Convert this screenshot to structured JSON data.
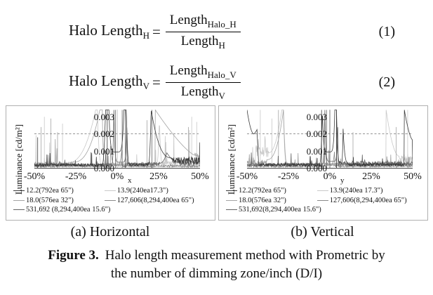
{
  "equations": [
    {
      "lhs": "Halo Length",
      "lhs_sub": "H",
      "equals": "=",
      "num": "Length",
      "num_sub": "Halo_H",
      "den": "Length",
      "den_sub": "H",
      "number": "(1)"
    },
    {
      "lhs": "Halo Length",
      "lhs_sub": "V",
      "equals": "=",
      "num": "Length",
      "num_sub": "Halo_V",
      "den": "Length",
      "den_sub": "V",
      "number": "(2)"
    }
  ],
  "chart_data": [
    {
      "type": "line",
      "title": "(a) Horizontal",
      "ylabel": "Luminance [cd/m²]",
      "xlabel": "x",
      "x_ticks": [
        "-50%",
        "-25%",
        "0%",
        "25%",
        "50%"
      ],
      "x_tick_values": [
        -50,
        -25,
        0,
        25,
        50
      ],
      "y_ticks": [
        "0.003",
        "0.002",
        "0.001",
        "0.000"
      ],
      "xlim": [
        -50,
        50
      ],
      "ylim": [
        0,
        0.0034
      ],
      "threshold": 0.002,
      "grid": "dashed threshold line at 0.002 only",
      "legend_position": "bottom",
      "series": [
        {
          "label": "12.2(792ea 65\")",
          "color": "#3b3b3b",
          "segments": [
            {
              "t": "flat",
              "x0": -50,
              "x1": -9,
              "base": 0.00018,
              "amp": 8e-05,
              "sp": 0.02,
              "sh": 0.0011
            },
            {
              "t": "rise",
              "x0": -9,
              "x1": -7,
              "y0": 0.0002,
              "y1": 0.0034,
              "k": 2
            },
            {
              "t": "top",
              "x0": -7,
              "x1": -5,
              "y": 0.0034
            },
            {
              "t": "u",
              "x0": -5,
              "x1": 4,
              "ymin": 0.00095,
              "ytop": 0.0034,
              "k": 6
            },
            {
              "t": "top",
              "x0": 4,
              "x1": 5.5,
              "y": 0.0034
            },
            {
              "t": "fall",
              "x0": 5.5,
              "x1": 7,
              "y0": 0.0034,
              "y1": 0.0003,
              "k": 2
            },
            {
              "t": "flat",
              "x0": 7,
              "x1": 19,
              "base": 0.0002,
              "amp": 8e-05,
              "sp": 0.01,
              "sh": 0.0008
            },
            {
              "t": "rise",
              "x0": 19,
              "x1": 20.5,
              "y0": 0.0003,
              "y1": 0.0034,
              "k": 2
            },
            {
              "t": "fall",
              "x0": 20.5,
              "x1": 33,
              "y0": 0.0034,
              "y1": 0.0006,
              "k": 2.6
            },
            {
              "t": "flat",
              "x0": 33,
              "x1": 50,
              "base": 0.00045,
              "amp": 0.0002,
              "sp": 0.03,
              "sh": 0.0012
            }
          ],
          "vlines": [
            {
              "x": -6,
              "h": 0.0034
            },
            {
              "x": 5,
              "h": 0.0034
            },
            {
              "x": -48,
              "h": 0.0018
            }
          ]
        },
        {
          "label": "13.9(240ea17.3\")",
          "color": "#c8c8c8",
          "segments": [
            {
              "t": "flat",
              "x0": -50,
              "x1": -31,
              "base": 0.00022,
              "amp": 0.00012,
              "sp": 0.04,
              "sh": 0.0018
            },
            {
              "t": "rise",
              "x0": -31,
              "x1": -13,
              "y0": 0.0003,
              "y1": 0.0034,
              "k": 2.6
            },
            {
              "t": "top",
              "x0": -13,
              "x1": -12,
              "y": 0.0034
            },
            {
              "t": "fall",
              "x0": -12,
              "x1": -10,
              "y0": 0.0034,
              "y1": 0.0004,
              "k": 2
            },
            {
              "t": "flat",
              "x0": -10,
              "x1": 24,
              "base": 0.0002,
              "amp": 0.0001,
              "sp": 0.02,
              "sh": 0.001
            },
            {
              "t": "rise",
              "x0": 24,
              "x1": 25.5,
              "y0": 0.0003,
              "y1": 0.0028,
              "k": 2
            },
            {
              "t": "fall",
              "x0": 25.5,
              "x1": 27,
              "y0": 0.0028,
              "y1": 0.0003,
              "k": 2
            },
            {
              "t": "flat",
              "x0": 27,
              "x1": 50,
              "base": 0.00025,
              "amp": 0.00015,
              "sp": 0.05,
              "sh": 0.0022
            }
          ],
          "vlines": [
            {
              "x": -44,
              "h": 0.003
            },
            {
              "x": -33,
              "h": 0.0026
            },
            {
              "x": 45,
              "h": 0.003
            },
            {
              "x": 48,
              "h": 0.0027
            }
          ]
        },
        {
          "label": "18.0(576ea 32\")",
          "color": "#a3a3a3",
          "segments": [
            {
              "t": "flat",
              "x0": -50,
              "x1": -27,
              "base": 0.00025,
              "amp": 0.00013,
              "sp": 0.05,
              "sh": 0.0016
            },
            {
              "t": "rise",
              "x0": -27,
              "x1": -10.5,
              "y0": 0.00035,
              "y1": 0.0034,
              "k": 2.6
            },
            {
              "t": "top",
              "x0": -10.5,
              "x1": -9,
              "y": 0.0034
            },
            {
              "t": "fall",
              "x0": -9,
              "x1": -8,
              "y0": 0.0034,
              "y1": 0.0004,
              "k": 2
            },
            {
              "t": "flat",
              "x0": -8,
              "x1": 23,
              "base": 0.0002,
              "amp": 0.0001,
              "sp": 0.015,
              "sh": 0.0009
            },
            {
              "t": "fall",
              "x0": 23,
              "x1": 47,
              "y0": 0.0034,
              "y1": 0.00075,
              "k": 1.3
            },
            {
              "t": "flat",
              "x0": 47,
              "x1": 50,
              "base": 0.0007,
              "amp": 0.0002,
              "sp": 0.05,
              "sh": 0.0015
            }
          ],
          "vlines": [
            {
              "x": -46,
              "h": 0.0024
            },
            {
              "x": -40,
              "h": 0.0029
            },
            {
              "x": -36,
              "h": 0.0021
            },
            {
              "x": 18,
              "h": 0.0028
            },
            {
              "x": 43,
              "h": 0.0024
            }
          ]
        },
        {
          "label": "127,606(8,294,400ea 65\")",
          "color": "#8a8a8a",
          "segments": [
            {
              "t": "flat",
              "x0": -50,
              "x1": -4,
              "base": 0.00012,
              "amp": 6e-05,
              "sp": 0.008,
              "sh": 0.0006
            },
            {
              "t": "u",
              "x0": -4,
              "x1": 3,
              "ymin": 0.00018,
              "ytop": 0.0013,
              "k": 4
            },
            {
              "t": "flat",
              "x0": 3,
              "x1": 50,
              "base": 0.00012,
              "amp": 6e-05,
              "sp": 0.008,
              "sh": 0.0006
            }
          ],
          "vlines": []
        },
        {
          "label": "531,692 (8,294,400ea 15.6\")",
          "color": "#636363",
          "segments": [
            {
              "t": "flat",
              "x0": -50,
              "x1": -3,
              "base": 0.0002,
              "amp": 0.0001,
              "sp": 0.02,
              "sh": 0.001
            },
            {
              "t": "rise",
              "x0": -3,
              "x1": -2,
              "y0": 0.0003,
              "y1": 0.0034,
              "k": 2
            },
            {
              "t": "u",
              "x0": -2,
              "x1": 6,
              "ymin": 0.00035,
              "ytop": 0.0034,
              "k": 8
            },
            {
              "t": "flat",
              "x0": 6,
              "x1": 26,
              "base": 0.00025,
              "amp": 0.0001,
              "sp": 0.015,
              "sh": 0.0008
            },
            {
              "t": "rise",
              "x0": 26,
              "x1": 30,
              "y0": 0.0003,
              "y1": 0.0009,
              "k": 2
            },
            {
              "t": "fall",
              "x0": 30,
              "x1": 37,
              "y0": 0.0009,
              "y1": 0.00035,
              "k": 2
            },
            {
              "t": "flat",
              "x0": 37,
              "x1": 50,
              "base": 0.0003,
              "amp": 0.00015,
              "sp": 0.03,
              "sh": 0.0013
            }
          ],
          "vlines": [
            {
              "x": -1,
              "h": 0.0034
            },
            {
              "x": 3,
              "h": 0.0034
            },
            {
              "x": 21,
              "h": 0.0034
            }
          ]
        }
      ]
    },
    {
      "type": "line",
      "title": "(b) Vertical",
      "ylabel": "Luminance [cd/m²]",
      "xlabel": "y",
      "x_ticks": [
        "-50%",
        "-25%",
        "0%",
        "25%",
        "50%"
      ],
      "x_tick_values": [
        -50,
        -25,
        0,
        25,
        50
      ],
      "y_ticks": [
        "0.003",
        "0.002",
        "0.001",
        "0.000"
      ],
      "xlim": [
        -50,
        50
      ],
      "ylim": [
        0,
        0.0034
      ],
      "threshold": 0.002,
      "grid": "dashed threshold line at 0.002 only",
      "legend_position": "bottom",
      "series": [
        {
          "label": "12.2(792ea 65\")",
          "color": "#3b3b3b",
          "segments": [
            {
              "t": "fall",
              "x0": -50,
              "x1": -46,
              "y0": 0.0034,
              "y1": 0.002,
              "k": 1.8
            },
            {
              "t": "rise",
              "x0": -46,
              "x1": -44,
              "y0": 0.002,
              "y1": 0.00225,
              "k": 1.5
            },
            {
              "t": "fall",
              "x0": -44,
              "x1": -43,
              "y0": 0.00225,
              "y1": 0.0003,
              "k": 1
            },
            {
              "t": "flat",
              "x0": -43,
              "x1": -6,
              "base": 0.0002,
              "amp": 8e-05,
              "sp": 0.01,
              "sh": 0.0007
            },
            {
              "t": "rise",
              "x0": -6,
              "x1": -4.5,
              "y0": 0.0003,
              "y1": 0.0034,
              "k": 2
            },
            {
              "t": "u",
              "x0": -4.5,
              "x1": 3,
              "ymin": 0.00095,
              "ytop": 0.0034,
              "k": 6
            },
            {
              "t": "top",
              "x0": 3,
              "x1": 4,
              "y": 0.0034
            },
            {
              "t": "fall",
              "x0": 4,
              "x1": 5.5,
              "y0": 0.0034,
              "y1": 0.0004,
              "k": 2
            },
            {
              "t": "flat",
              "x0": 5.5,
              "x1": 7,
              "base": 0.0003,
              "amp": 0.0001,
              "sp": 0,
              "sh": 0
            },
            {
              "t": "rise",
              "x0": 7,
              "x1": 8,
              "y0": 0.0003,
              "y1": 0.0023,
              "k": 3
            },
            {
              "t": "fall",
              "x0": 8,
              "x1": 11,
              "y0": 0.0023,
              "y1": 0.0003,
              "k": 3
            },
            {
              "t": "flat",
              "x0": 11,
              "x1": 45,
              "base": 0.0002,
              "amp": 8e-05,
              "sp": 0.01,
              "sh": 0.0006
            },
            {
              "t": "fall",
              "x0": 45,
              "x1": 50,
              "y0": 0.0034,
              "y1": 0.00165,
              "k": 1.6
            }
          ],
          "vlines": [
            {
              "x": -5,
              "h": 0.0034
            },
            {
              "x": 4,
              "h": 0.0034
            }
          ]
        },
        {
          "label": "13.9(240ea 17.3\")",
          "color": "#c8c8c8",
          "segments": [
            {
              "t": "flat",
              "x0": -50,
              "x1": -45,
              "base": 0.0004,
              "amp": 0.0002,
              "sp": 0.05,
              "sh": 0.001
            },
            {
              "t": "flat",
              "x0": -45,
              "x1": -37,
              "base": 0.001,
              "amp": 0.00035,
              "sp": 0.12,
              "sh": 0.0012
            },
            {
              "t": "rise",
              "x0": -37,
              "x1": -29,
              "y0": 0.0009,
              "y1": 0.0034,
              "k": 2.2
            },
            {
              "t": "top",
              "x0": -29,
              "x1": -28,
              "y": 0.0034
            },
            {
              "t": "fall",
              "x0": -28,
              "x1": -26,
              "y0": 0.0034,
              "y1": 0.0003,
              "k": 2
            },
            {
              "t": "flat",
              "x0": -26,
              "x1": 34,
              "base": 0.0002,
              "amp": 0.0001,
              "sp": 0.015,
              "sh": 0.0008
            },
            {
              "t": "fall",
              "x0": 34,
              "x1": 42,
              "y0": 0.0034,
              "y1": 0.0007,
              "k": 2
            },
            {
              "t": "flat",
              "x0": 42,
              "x1": 50,
              "base": 0.0005,
              "amp": 0.00025,
              "sp": 0.06,
              "sh": 0.0018
            }
          ],
          "vlines": [
            {
              "x": -42,
              "h": 0.0034
            },
            {
              "x": -35,
              "h": 0.0029
            },
            {
              "x": 47,
              "h": 0.0034
            }
          ]
        },
        {
          "label": "18.0(576ea 32\")",
          "color": "#a3a3a3",
          "segments": [
            {
              "t": "flat",
              "x0": -50,
              "x1": -38,
              "base": 0.0003,
              "amp": 0.00015,
              "sp": 0.04,
              "sh": 0.0012
            },
            {
              "t": "rise",
              "x0": -38,
              "x1": -28,
              "y0": 0.0005,
              "y1": 0.0034,
              "k": 2.5
            },
            {
              "t": "fall",
              "x0": -28,
              "x1": -26.5,
              "y0": 0.0034,
              "y1": 0.0004,
              "k": 2
            },
            {
              "t": "flat",
              "x0": -26.5,
              "x1": 50,
              "base": 0.00022,
              "amp": 0.0001,
              "sp": 0.02,
              "sh": 0.0009
            }
          ],
          "vlines": [
            {
              "x": -31,
              "h": 0.0034
            },
            {
              "x": 14,
              "h": 0.0021
            },
            {
              "x": 40,
              "h": 0.0024
            }
          ]
        },
        {
          "label": "127,606(8,294,400ea 65\")",
          "color": "#8a8a8a",
          "segments": [
            {
              "t": "flat",
              "x0": -50,
              "x1": -3,
              "base": 0.00012,
              "amp": 6e-05,
              "sp": 0.008,
              "sh": 0.0006
            },
            {
              "t": "u",
              "x0": -3,
              "x1": 3,
              "ymin": 0.0002,
              "ytop": 0.0012,
              "k": 4
            },
            {
              "t": "flat",
              "x0": 3,
              "x1": 50,
              "base": 0.00012,
              "amp": 6e-05,
              "sp": 0.008,
              "sh": 0.0006
            }
          ],
          "vlines": []
        },
        {
          "label": "531,692(8,294,400ea 15.6\")",
          "color": "#636363",
          "segments": [
            {
              "t": "flat",
              "x0": -50,
              "x1": -4,
              "base": 0.0002,
              "amp": 0.0001,
              "sp": 0.02,
              "sh": 0.0009
            },
            {
              "t": "rise",
              "x0": -4,
              "x1": -3,
              "y0": 0.0003,
              "y1": 0.0034,
              "k": 2
            },
            {
              "t": "u",
              "x0": -3,
              "x1": 5,
              "ymin": 0.0004,
              "ytop": 0.0034,
              "k": 8
            },
            {
              "t": "flat",
              "x0": 5,
              "x1": 50,
              "base": 0.00028,
              "amp": 0.00014,
              "sp": 0.025,
              "sh": 0.0011
            }
          ],
          "vlines": [
            {
              "x": -2,
              "h": 0.0034
            },
            {
              "x": 0,
              "h": 0.0034
            },
            {
              "x": 4,
              "h": 0.0034
            }
          ]
        }
      ]
    }
  ],
  "figure_caption": {
    "label": "Figure 3.",
    "line1": "Halo length measurement method with Prometric by",
    "line2": "the number of dimming zone/inch (D/I)"
  }
}
